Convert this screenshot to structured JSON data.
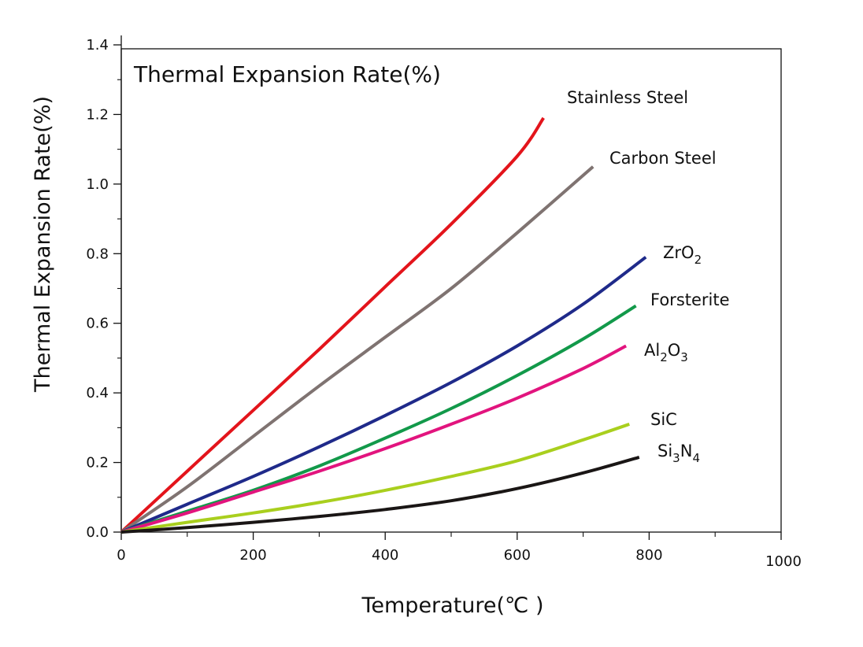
{
  "chart_data": {
    "type": "line",
    "title": "Thermal Expansion Rate(%)",
    "xlabel": "Temperature(℃ )",
    "ylabel": "Thermal Expansion Rate(%)",
    "xlim": [
      0,
      1000
    ],
    "ylim": [
      0,
      1.4
    ],
    "xticks": [
      "0",
      "200",
      "400",
      "600",
      "800",
      "1000"
    ],
    "yticks": [
      "0.0",
      "0.2",
      "0.4",
      "0.6",
      "0.8",
      "1.0",
      "1.2",
      "1.4"
    ],
    "grid": false,
    "series": [
      {
        "name": "Stainless Steel",
        "name_parts": [
          {
            "t": "Stainless Steel",
            "sub": false
          }
        ],
        "color": "#e3141b",
        "x": [
          0,
          100,
          200,
          300,
          400,
          500,
          600,
          640
        ],
        "y": [
          0,
          0.175,
          0.35,
          0.525,
          0.705,
          0.885,
          1.08,
          1.19
        ]
      },
      {
        "name": "Carbon Steel",
        "name_parts": [
          {
            "t": "Carbon Steel",
            "sub": false
          }
        ],
        "color": "#7f7371",
        "x": [
          0,
          100,
          200,
          300,
          400,
          500,
          600,
          715
        ],
        "y": [
          0,
          0.13,
          0.275,
          0.42,
          0.56,
          0.7,
          0.86,
          1.05
        ]
      },
      {
        "name": "ZrO2",
        "name_parts": [
          {
            "t": "ZrO",
            "sub": false
          },
          {
            "t": "2",
            "sub": true
          }
        ],
        "color": "#1f2a8a",
        "x": [
          0,
          100,
          200,
          300,
          400,
          500,
          600,
          700,
          795
        ],
        "y": [
          0,
          0.08,
          0.16,
          0.245,
          0.335,
          0.43,
          0.535,
          0.655,
          0.79
        ]
      },
      {
        "name": "Forsterite",
        "name_parts": [
          {
            "t": "Forsterite",
            "sub": false
          }
        ],
        "color": "#12994a",
        "x": [
          0,
          100,
          200,
          300,
          400,
          500,
          600,
          700,
          780
        ],
        "y": [
          0,
          0.06,
          0.12,
          0.19,
          0.27,
          0.355,
          0.45,
          0.555,
          0.65
        ]
      },
      {
        "name": "Al2O3",
        "name_parts": [
          {
            "t": "Al",
            "sub": false
          },
          {
            "t": "2",
            "sub": true
          },
          {
            "t": "O",
            "sub": false
          },
          {
            "t": "3",
            "sub": true
          }
        ],
        "color": "#e2147e",
        "x": [
          0,
          100,
          200,
          300,
          400,
          500,
          600,
          700,
          765
        ],
        "y": [
          0,
          0.055,
          0.115,
          0.175,
          0.24,
          0.31,
          0.385,
          0.47,
          0.535
        ]
      },
      {
        "name": "SiC",
        "name_parts": [
          {
            "t": "SiC",
            "sub": false
          }
        ],
        "color": "#a9cf1e",
        "x": [
          0,
          100,
          200,
          300,
          400,
          500,
          600,
          700,
          770
        ],
        "y": [
          0,
          0.028,
          0.055,
          0.085,
          0.12,
          0.16,
          0.205,
          0.265,
          0.31
        ]
      },
      {
        "name": "Si3N4",
        "name_parts": [
          {
            "t": "Si",
            "sub": false
          },
          {
            "t": "3",
            "sub": true
          },
          {
            "t": "N",
            "sub": false
          },
          {
            "t": "4",
            "sub": true
          }
        ],
        "color": "#1a1615",
        "x": [
          0,
          100,
          200,
          300,
          400,
          500,
          600,
          700,
          785
        ],
        "y": [
          0,
          0.013,
          0.028,
          0.045,
          0.065,
          0.09,
          0.125,
          0.17,
          0.215
        ]
      }
    ]
  }
}
